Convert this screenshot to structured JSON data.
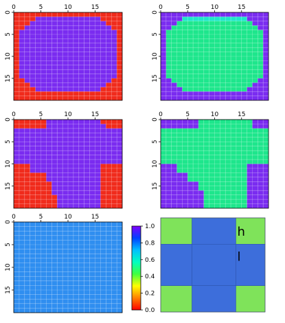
{
  "chart_data": [
    {
      "type": "heatmap",
      "grid": [
        20,
        20
      ],
      "xticks": [
        "0",
        "5",
        "10",
        "15"
      ],
      "yticks": [
        "0",
        "5",
        "10",
        "15"
      ],
      "xlim": [
        0,
        20
      ],
      "ylim": [
        0,
        20
      ],
      "pattern": "octagon",
      "values": {
        "inside": 1.0,
        "outside": 0.0
      },
      "colors": {
        "inside": "#7a2cf0",
        "outside": "#f02b1c"
      },
      "grid_on": true
    },
    {
      "type": "heatmap",
      "grid": [
        20,
        20
      ],
      "xticks": [
        "0",
        "5",
        "10",
        "15"
      ],
      "yticks": [
        "0",
        "5",
        "10",
        "15"
      ],
      "xlim": [
        0,
        20
      ],
      "ylim": [
        0,
        20
      ],
      "pattern": "octagon",
      "values": {
        "inside": 0.55,
        "edge": 0.5,
        "outside": 1.0
      },
      "colors": {
        "inside": "#1ee68c",
        "edge": "#1ee8c8",
        "outside": "#7a2cf0"
      },
      "grid_on": true
    },
    {
      "type": "heatmap",
      "grid": [
        20,
        20
      ],
      "xticks": [
        "0",
        "5",
        "10",
        "15"
      ],
      "yticks": [
        "0",
        "5",
        "10",
        "15"
      ],
      "xlim": [
        0,
        20
      ],
      "ylim": [
        0,
        20
      ],
      "pattern": "corners",
      "values": {
        "inside": 1.0,
        "outside": 0.0
      },
      "colors": {
        "inside": "#7a2cf0",
        "outside": "#f02b1c"
      },
      "grid_on": true
    },
    {
      "type": "heatmap",
      "grid": [
        20,
        20
      ],
      "xticks": [
        "0",
        "5",
        "10",
        "15"
      ],
      "yticks": [
        "0",
        "5",
        "10",
        "15"
      ],
      "xlim": [
        0,
        20
      ],
      "ylim": [
        0,
        20
      ],
      "pattern": "cross",
      "values": {
        "inside": 0.55,
        "outside": 1.0
      },
      "colors": {
        "inside": "#1ee68c",
        "outside": "#7a2cf0"
      },
      "grid_on": true
    },
    {
      "type": "heatmap",
      "grid": [
        20,
        20
      ],
      "xticks": [
        "0",
        "5",
        "10",
        "15"
      ],
      "yticks": [
        "0",
        "5",
        "10",
        "15"
      ],
      "xlim": [
        0,
        20
      ],
      "ylim": [
        0,
        20
      ],
      "pattern": "uniform",
      "values": {
        "all": 0.72
      },
      "colors": {
        "all": "#2f8ef0"
      },
      "grid_on": true
    },
    {
      "type": "heatmap",
      "grid": [
        3,
        3
      ],
      "pattern": "plus",
      "values": {
        "center": 0.75,
        "corner": 0.4
      },
      "colors": {
        "center": "#3d6edb",
        "corner": "#7fe35a"
      },
      "labels": [
        {
          "text": "h",
          "row": 0,
          "col": 2
        },
        {
          "text": "l",
          "row": 1,
          "col": 2
        }
      ]
    }
  ],
  "colorbar": {
    "ticks": [
      "1.0",
      "0.8",
      "0.6",
      "0.4",
      "0.2",
      "0.0"
    ],
    "range": [
      0,
      1
    ],
    "stops": [
      "#ff0000",
      "#ff8000",
      "#ffff00",
      "#40ff40",
      "#00ffc0",
      "#00c0ff",
      "#0040ff",
      "#8000ff"
    ]
  }
}
